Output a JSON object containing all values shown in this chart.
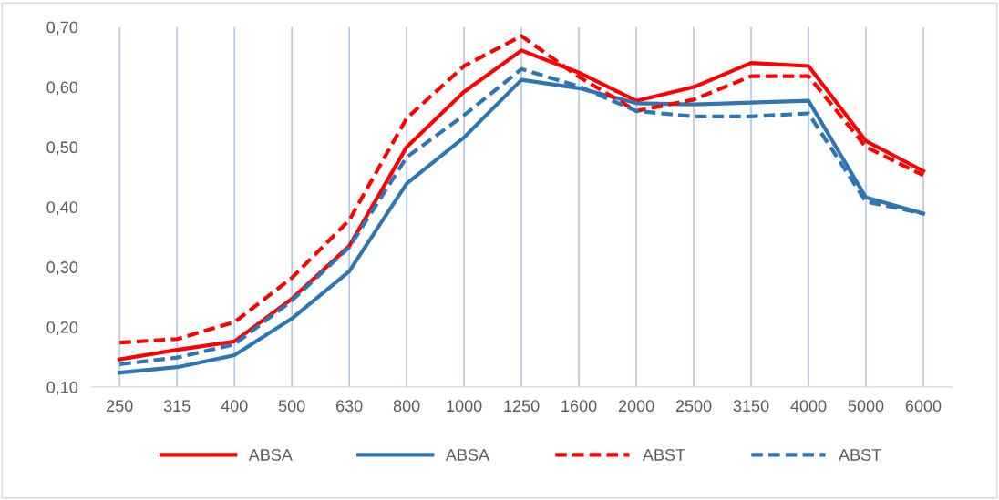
{
  "chart_data": {
    "type": "line",
    "categories": [
      "250",
      "315",
      "400",
      "500",
      "630",
      "800",
      "1000",
      "1250",
      "1600",
      "2000",
      "2500",
      "3150",
      "4000",
      "5000",
      "6000"
    ],
    "series": [
      {
        "name": "ABSA",
        "color": "#ff0000",
        "line_style": "solid",
        "values": [
          0.146,
          0.162,
          0.176,
          0.247,
          0.335,
          0.5,
          0.592,
          0.661,
          0.624,
          0.577,
          0.6,
          0.64,
          0.635,
          0.51,
          0.46
        ]
      },
      {
        "name": "ABSA",
        "color": "#2e75b6",
        "line_style": "solid",
        "values": [
          0.124,
          0.133,
          0.153,
          0.214,
          0.293,
          0.439,
          0.516,
          0.612,
          0.598,
          0.573,
          0.571,
          0.574,
          0.577,
          0.416,
          0.389
        ]
      },
      {
        "name": "ABST",
        "color": "#ff0000",
        "line_style": "dashed",
        "values": [
          0.174,
          0.18,
          0.208,
          0.282,
          0.378,
          0.548,
          0.635,
          0.685,
          0.617,
          0.56,
          0.579,
          0.618,
          0.618,
          0.5,
          0.453
        ]
      },
      {
        "name": "ABST",
        "color": "#2e75b6",
        "line_style": "dashed",
        "values": [
          0.138,
          0.149,
          0.171,
          0.244,
          0.333,
          0.483,
          0.553,
          0.63,
          0.601,
          0.56,
          0.551,
          0.551,
          0.556,
          0.409,
          0.389
        ]
      }
    ],
    "ylim": [
      0.1,
      0.7
    ],
    "yticks": [
      {
        "value": 0.1,
        "label": "0,10"
      },
      {
        "value": 0.2,
        "label": "0,20"
      },
      {
        "value": 0.3,
        "label": "0,30"
      },
      {
        "value": 0.4,
        "label": "0,40"
      },
      {
        "value": 0.5,
        "label": "0,50"
      },
      {
        "value": 0.6,
        "label": "0,60"
      },
      {
        "value": 0.7,
        "label": "0,70"
      }
    ],
    "grid": "x",
    "legend": "bottom",
    "marker": "none"
  }
}
